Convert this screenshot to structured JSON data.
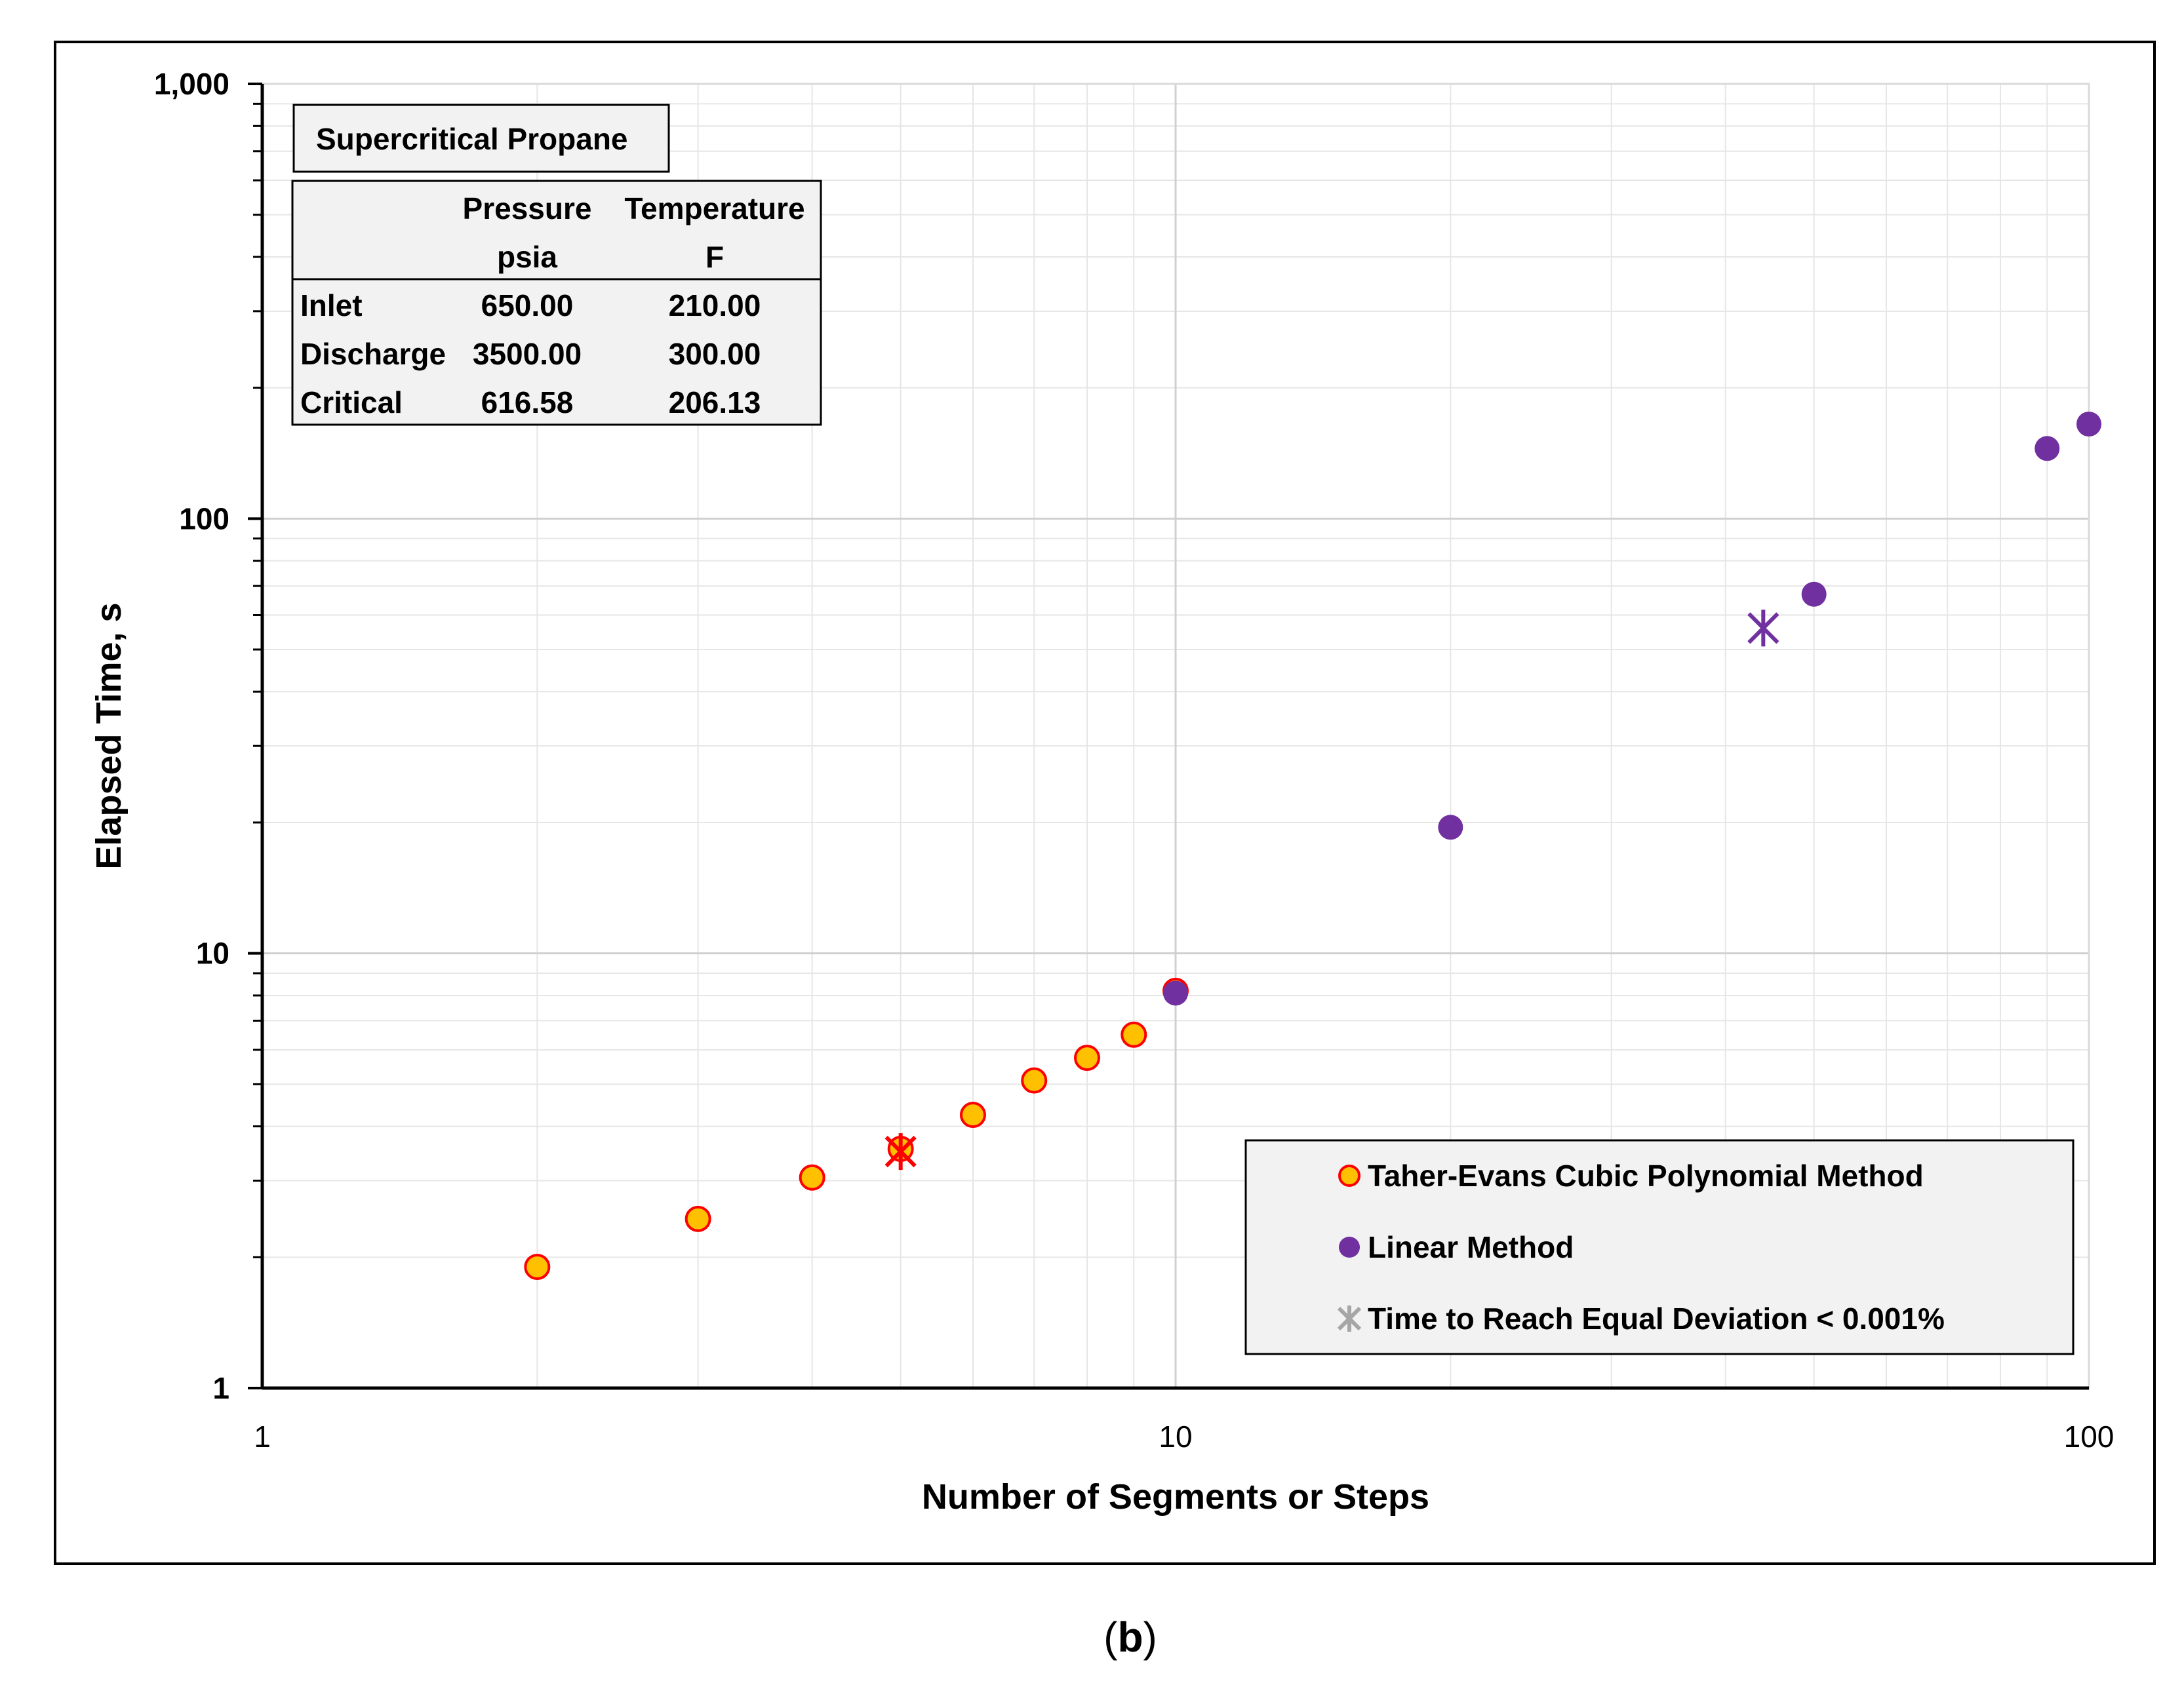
{
  "chart_data": {
    "type": "scatter",
    "x_scale": "log",
    "y_scale": "log",
    "xlim": [
      1,
      100
    ],
    "ylim": [
      1,
      1000
    ],
    "xlabel": "Number of Segments or Steps",
    "ylabel": "Elapsed Time, s",
    "x_ticks": [
      {
        "value": 1,
        "label": "1"
      },
      {
        "value": 10,
        "label": "10"
      },
      {
        "value": 100,
        "label": "100"
      }
    ],
    "y_ticks": [
      {
        "value": 1,
        "label": "1"
      },
      {
        "value": 10,
        "label": "10"
      },
      {
        "value": 100,
        "label": "100"
      },
      {
        "value": 1000,
        "label": "1,000"
      }
    ],
    "grid": true,
    "legend_position": "bottom-right",
    "series": [
      {
        "name": "Taher-Evans Cubic Polynomial Method",
        "marker": "circle",
        "fill": "#FFC000",
        "stroke": "#FF0000",
        "points": [
          {
            "x": 2,
            "y": 1.9
          },
          {
            "x": 3,
            "y": 2.45
          },
          {
            "x": 4,
            "y": 3.05
          },
          {
            "x": 5,
            "y": 3.55
          },
          {
            "x": 6,
            "y": 4.25
          },
          {
            "x": 7,
            "y": 5.1
          },
          {
            "x": 8,
            "y": 5.75
          },
          {
            "x": 9,
            "y": 6.5
          },
          {
            "x": 10,
            "y": 8.2
          }
        ]
      },
      {
        "name": "Linear Method",
        "marker": "circle",
        "fill": "#7030A0",
        "stroke": "#7030A0",
        "points": [
          {
            "x": 10,
            "y": 8.1
          },
          {
            "x": 20,
            "y": 19.5
          },
          {
            "x": 50,
            "y": 67
          },
          {
            "x": 90,
            "y": 145
          },
          {
            "x": 100,
            "y": 165
          }
        ]
      },
      {
        "name": "Time to Reach Equal Deviation < 0.001%",
        "marker": "asterisk",
        "fill": "#A6A6A6",
        "stroke": "#A6A6A6",
        "legend_color": "#A6A6A6",
        "points": [
          {
            "x": 5,
            "y": 3.5,
            "color": "#FF0000"
          },
          {
            "x": 44,
            "y": 56,
            "color": "#7030A0"
          }
        ]
      }
    ],
    "annotation_table": {
      "title": "Supercritical Propane",
      "headers": [
        [
          "",
          "Pressure",
          "Temperature"
        ],
        [
          "",
          "psia",
          "F"
        ]
      ],
      "rows": [
        [
          "Inlet",
          "650.00",
          "210.00"
        ],
        [
          "Discharge",
          "3500.00",
          "300.00"
        ],
        [
          "Critical",
          "616.58",
          "206.13"
        ]
      ]
    },
    "caption": {
      "open": "(",
      "letter": "b",
      "close": ")"
    }
  }
}
